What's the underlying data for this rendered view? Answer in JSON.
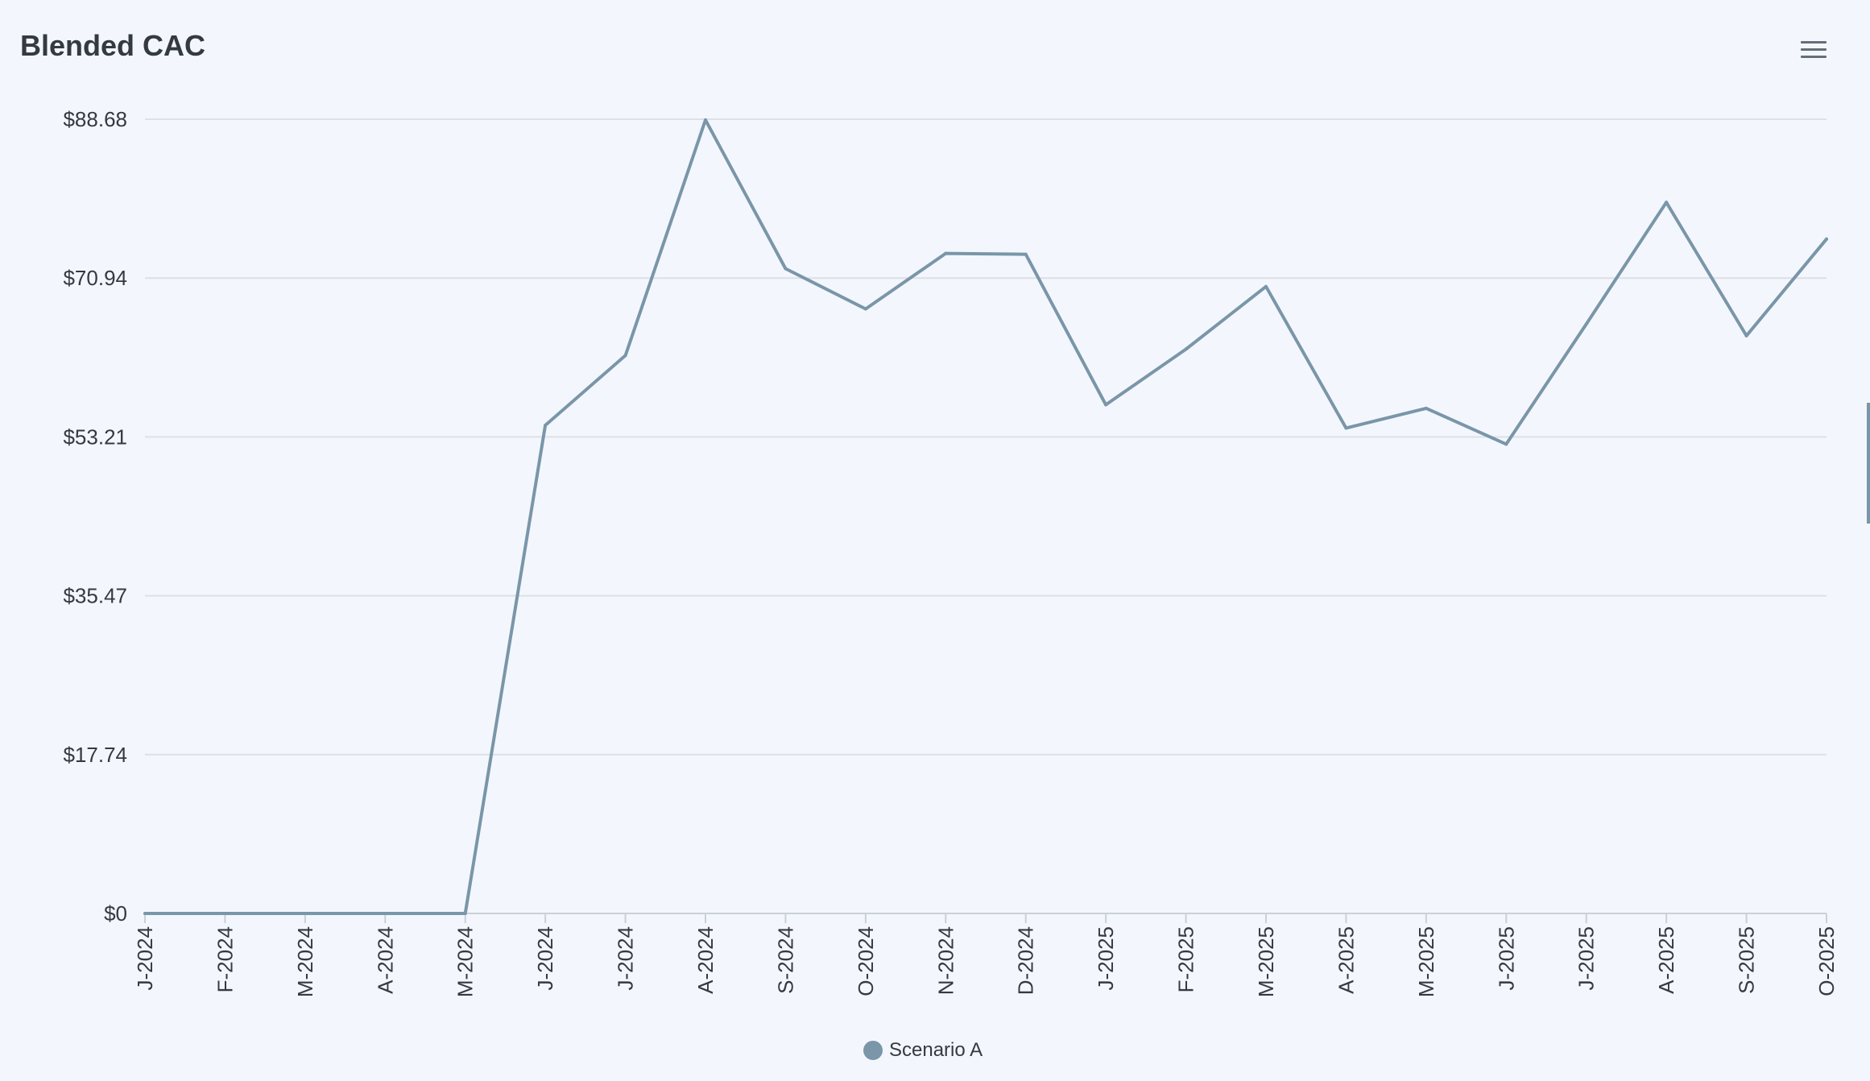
{
  "title": "Blended CAC",
  "menu_icon": "hamburger-menu-icon",
  "chart_data": {
    "type": "line",
    "title": "Blended CAC",
    "xlabel": "",
    "ylabel": "",
    "categories": [
      "J-2024",
      "F-2024",
      "M-2024",
      "A-2024",
      "M-2024",
      "J-2024",
      "J-2024",
      "A-2024",
      "S-2024",
      "O-2024",
      "N-2024",
      "D-2024",
      "J-2025",
      "F-2025",
      "M-2025",
      "A-2025",
      "M-2025",
      "J-2025",
      "J-2025",
      "A-2025",
      "S-2025",
      "O-2025"
    ],
    "y_ticks": [
      "$0",
      "$17.74",
      "$35.47",
      "$53.21",
      "$70.94",
      "$88.68"
    ],
    "y_tick_values": [
      0,
      17.74,
      35.47,
      53.21,
      70.94,
      88.68
    ],
    "ylim": [
      0,
      88.68
    ],
    "grid": true,
    "legend_position": "bottom-center",
    "series": [
      {
        "name": "Scenario A",
        "color": "#7a96a8",
        "values": [
          0,
          0,
          0,
          0,
          0,
          54.5,
          62.3,
          88.6,
          72.0,
          67.5,
          73.7,
          73.6,
          56.8,
          63.0,
          70.0,
          54.2,
          56.4,
          52.4,
          65.8,
          79.4,
          64.5,
          75.3
        ]
      }
    ]
  }
}
